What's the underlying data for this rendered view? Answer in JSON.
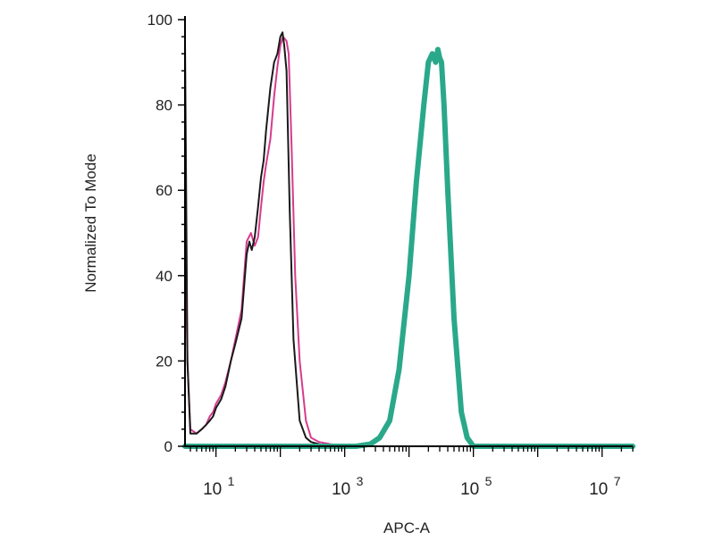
{
  "chart_data": {
    "type": "line",
    "title": "",
    "xlabel": "APC-A",
    "ylabel": "Normalized To Mode",
    "x_scale": "log",
    "xlim": [
      3.3,
      30000000
    ],
    "ylim": [
      0,
      100
    ],
    "y_ticks": [
      0,
      20,
      40,
      60,
      80,
      100
    ],
    "x_ticks": [
      {
        "value": 10,
        "base": "10",
        "exp": "1"
      },
      {
        "value": 1000,
        "base": "10",
        "exp": "3"
      },
      {
        "value": 100000,
        "base": "10",
        "exp": "5"
      },
      {
        "value": 10000000,
        "base": "10",
        "exp": "7"
      }
    ],
    "grid": false,
    "legend": "none",
    "series": [
      {
        "color": "#d63b8e",
        "width": 2,
        "x": [
          3.3,
          3.6,
          4,
          5,
          6,
          7,
          8,
          9,
          10,
          12,
          14,
          17,
          20,
          25,
          30,
          35,
          40,
          45,
          50,
          55,
          60,
          70,
          80,
          90,
          100,
          110,
          125,
          135,
          150,
          170,
          200,
          250,
          300,
          400,
          600,
          1000,
          3000
        ],
        "y": [
          55,
          20,
          4,
          3,
          4,
          5,
          7,
          8,
          10,
          12,
          15,
          20,
          25,
          32,
          48,
          50,
          47,
          49,
          56,
          62,
          66,
          72,
          82,
          89,
          94,
          96,
          95,
          92,
          70,
          40,
          20,
          6,
          2,
          1,
          0.5,
          0,
          0
        ]
      },
      {
        "color": "#1a1a1a",
        "width": 2,
        "x": [
          3.3,
          3.6,
          4,
          5,
          6,
          7,
          8,
          9,
          10,
          12,
          14,
          17,
          20,
          25,
          30,
          33,
          36,
          40,
          45,
          50,
          55,
          60,
          70,
          80,
          90,
          100,
          108,
          115,
          125,
          140,
          160,
          200,
          250,
          300,
          400,
          600,
          1000
        ],
        "y": [
          95,
          20,
          3,
          3,
          4,
          5,
          6,
          7,
          9,
          11,
          14,
          20,
          24,
          30,
          45,
          48,
          46,
          49,
          56,
          63,
          67,
          74,
          84,
          90,
          92,
          96,
          97,
          94,
          88,
          55,
          25,
          6,
          2,
          1,
          0.5,
          0,
          0
        ]
      },
      {
        "color": "#2aa88a",
        "width": 6,
        "x": [
          3.3,
          500,
          1500,
          2500,
          3500,
          5000,
          7000,
          10000,
          13000,
          17000,
          20000,
          23000,
          26000,
          28000,
          30000,
          32000,
          35000,
          40000,
          50000,
          65000,
          80000,
          100000,
          150000,
          30000000
        ],
        "y": [
          0,
          0,
          0,
          0.5,
          2,
          6,
          18,
          40,
          62,
          80,
          90,
          92,
          90,
          93,
          91,
          90,
          80,
          60,
          30,
          8,
          2,
          0,
          0,
          0
        ]
      }
    ]
  }
}
